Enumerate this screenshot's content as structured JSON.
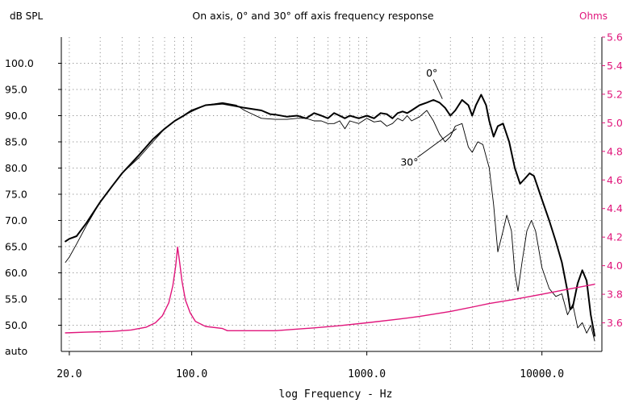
{
  "chart_data": {
    "type": "line",
    "title": "On axis, 0° and 30° off axis frequency response",
    "xlabel": "log Frequency - Hz",
    "ylabel_left": "dB SPL",
    "ylabel_right": "Ohms",
    "x_scale": "log",
    "xlim": [
      18,
      22000
    ],
    "ylim_left": [
      45,
      105
    ],
    "ylim_right": [
      3.4,
      5.6
    ],
    "grid": true,
    "x_ticks": [
      {
        "value": 20,
        "label": "20.0"
      },
      {
        "value": 100,
        "label": "100.0"
      },
      {
        "value": 1000,
        "label": "1000.0"
      },
      {
        "value": 10000,
        "label": "10000.0"
      }
    ],
    "y_ticks_left": [
      {
        "value": 100,
        "label": "100.0"
      },
      {
        "value": 95,
        "label": "95.0"
      },
      {
        "value": 90,
        "label": "90.0"
      },
      {
        "value": 85,
        "label": "85.0"
      },
      {
        "value": 80,
        "label": "80.0"
      },
      {
        "value": 75,
        "label": "75.0"
      },
      {
        "value": 70,
        "label": "70.0"
      },
      {
        "value": 65,
        "label": "65.0"
      },
      {
        "value": 60,
        "label": "60.0"
      },
      {
        "value": 55,
        "label": "55.0"
      },
      {
        "value": 50,
        "label": "50.0"
      }
    ],
    "y_bottom_label": "auto",
    "y_ticks_right": [
      {
        "value": 5.6,
        "label": "5.6"
      },
      {
        "value": 5.4,
        "label": "5.4"
      },
      {
        "value": 5.2,
        "label": "5.2"
      },
      {
        "value": 5.0,
        "label": "5.0"
      },
      {
        "value": 4.8,
        "label": "4.8"
      },
      {
        "value": 4.6,
        "label": "4.6"
      },
      {
        "value": 4.4,
        "label": "4.4"
      },
      {
        "value": 4.2,
        "label": "4.2"
      },
      {
        "value": 4.0,
        "label": "4.0"
      },
      {
        "value": 3.8,
        "label": "3.8"
      },
      {
        "value": 3.6,
        "label": "3.6"
      }
    ],
    "annotations": [
      {
        "text": "0°",
        "x": 2350,
        "y": 97.5
      },
      {
        "text": "30°",
        "x": 1750,
        "y": 80.5
      }
    ],
    "series": [
      {
        "name": "0°",
        "axis": "left",
        "color": "#000000",
        "width": 2,
        "points": [
          [
            19,
            66
          ],
          [
            20,
            66.5
          ],
          [
            22,
            67
          ],
          [
            25,
            69.5
          ],
          [
            30,
            73.5
          ],
          [
            35,
            76.5
          ],
          [
            40,
            79
          ],
          [
            50,
            82.5
          ],
          [
            60,
            85.5
          ],
          [
            70,
            87.5
          ],
          [
            80,
            89
          ],
          [
            90,
            90
          ],
          [
            100,
            91
          ],
          [
            120,
            92
          ],
          [
            150,
            92.3
          ],
          [
            180,
            91.8
          ],
          [
            200,
            91.5
          ],
          [
            250,
            91
          ],
          [
            280,
            90.3
          ],
          [
            300,
            90.2
          ],
          [
            350,
            89.8
          ],
          [
            400,
            90
          ],
          [
            450,
            89.5
          ],
          [
            500,
            90.5
          ],
          [
            550,
            90
          ],
          [
            600,
            89.5
          ],
          [
            650,
            90.5
          ],
          [
            700,
            90
          ],
          [
            750,
            89.5
          ],
          [
            800,
            90
          ],
          [
            900,
            89.5
          ],
          [
            1000,
            90
          ],
          [
            1100,
            89.5
          ],
          [
            1200,
            90.5
          ],
          [
            1300,
            90.3
          ],
          [
            1400,
            89.5
          ],
          [
            1500,
            90.5
          ],
          [
            1600,
            90.8
          ],
          [
            1700,
            90.5
          ],
          [
            1800,
            91
          ],
          [
            2000,
            92
          ],
          [
            2200,
            92.5
          ],
          [
            2400,
            93
          ],
          [
            2600,
            92.5
          ],
          [
            2800,
            91.5
          ],
          [
            3000,
            90
          ],
          [
            3200,
            91
          ],
          [
            3500,
            93
          ],
          [
            3800,
            92
          ],
          [
            4000,
            90
          ],
          [
            4200,
            92
          ],
          [
            4500,
            94
          ],
          [
            4800,
            92
          ],
          [
            5000,
            89
          ],
          [
            5300,
            86
          ],
          [
            5600,
            88
          ],
          [
            6000,
            88.5
          ],
          [
            6500,
            85
          ],
          [
            7000,
            80
          ],
          [
            7500,
            77
          ],
          [
            8000,
            78
          ],
          [
            8500,
            79
          ],
          [
            9000,
            78.5
          ],
          [
            10000,
            74
          ],
          [
            11000,
            70
          ],
          [
            12000,
            66
          ],
          [
            13000,
            62
          ],
          [
            14000,
            56.5
          ],
          [
            14500,
            53
          ],
          [
            15000,
            53.5
          ],
          [
            16000,
            58
          ],
          [
            17000,
            60.5
          ],
          [
            18000,
            58.5
          ],
          [
            19000,
            52
          ],
          [
            20000,
            48
          ]
        ]
      },
      {
        "name": "30°",
        "axis": "left",
        "color": "#000000",
        "width": 0.9,
        "points": [
          [
            19,
            62
          ],
          [
            20,
            63
          ],
          [
            22,
            65.5
          ],
          [
            25,
            69
          ],
          [
            30,
            73.5
          ],
          [
            35,
            76.5
          ],
          [
            40,
            79
          ],
          [
            50,
            82
          ],
          [
            60,
            85
          ],
          [
            70,
            87.5
          ],
          [
            80,
            89
          ],
          [
            90,
            90
          ],
          [
            100,
            90.8
          ],
          [
            120,
            92
          ],
          [
            150,
            92.5
          ],
          [
            180,
            92
          ],
          [
            200,
            91
          ],
          [
            250,
            89.5
          ],
          [
            300,
            89.3
          ],
          [
            350,
            89.3
          ],
          [
            400,
            89.5
          ],
          [
            450,
            89.5
          ],
          [
            500,
            89
          ],
          [
            550,
            89
          ],
          [
            600,
            88.5
          ],
          [
            650,
            88.5
          ],
          [
            700,
            89
          ],
          [
            750,
            87.5
          ],
          [
            800,
            89
          ],
          [
            900,
            88.5
          ],
          [
            1000,
            89.5
          ],
          [
            1100,
            88.8
          ],
          [
            1200,
            89
          ],
          [
            1300,
            88
          ],
          [
            1400,
            88.5
          ],
          [
            1500,
            89.5
          ],
          [
            1600,
            89
          ],
          [
            1700,
            90
          ],
          [
            1800,
            89
          ],
          [
            2000,
            89.8
          ],
          [
            2200,
            91
          ],
          [
            2400,
            89
          ],
          [
            2600,
            86.5
          ],
          [
            2800,
            85
          ],
          [
            3000,
            86
          ],
          [
            3200,
            88
          ],
          [
            3500,
            88.5
          ],
          [
            3800,
            84
          ],
          [
            4000,
            83
          ],
          [
            4300,
            85
          ],
          [
            4600,
            84.5
          ],
          [
            5000,
            80
          ],
          [
            5300,
            73
          ],
          [
            5600,
            64
          ],
          [
            6000,
            68
          ],
          [
            6300,
            71
          ],
          [
            6700,
            68
          ],
          [
            7000,
            60
          ],
          [
            7300,
            56.5
          ],
          [
            7700,
            62
          ],
          [
            8200,
            68
          ],
          [
            8700,
            70
          ],
          [
            9200,
            68
          ],
          [
            10000,
            61
          ],
          [
            11000,
            57
          ],
          [
            12000,
            55.5
          ],
          [
            13000,
            56
          ],
          [
            14000,
            52
          ],
          [
            15000,
            54
          ],
          [
            16000,
            49.5
          ],
          [
            17000,
            50.5
          ],
          [
            18000,
            48.5
          ],
          [
            19000,
            50
          ],
          [
            20000,
            47
          ]
        ]
      },
      {
        "name": "Ohms",
        "axis": "right",
        "color": "#e0157b",
        "width": 1.4,
        "points": [
          [
            19,
            3.53
          ],
          [
            25,
            3.535
          ],
          [
            35,
            3.54
          ],
          [
            45,
            3.55
          ],
          [
            55,
            3.57
          ],
          [
            62,
            3.6
          ],
          [
            68,
            3.65
          ],
          [
            74,
            3.74
          ],
          [
            78,
            3.86
          ],
          [
            81,
            4.0
          ],
          [
            83,
            4.13
          ],
          [
            85,
            4.04
          ],
          [
            88,
            3.89
          ],
          [
            92,
            3.76
          ],
          [
            98,
            3.67
          ],
          [
            105,
            3.61
          ],
          [
            120,
            3.575
          ],
          [
            150,
            3.56
          ],
          [
            160,
            3.545
          ],
          [
            200,
            3.545
          ],
          [
            300,
            3.545
          ],
          [
            500,
            3.565
          ],
          [
            700,
            3.58
          ],
          [
            1000,
            3.6
          ],
          [
            1500,
            3.625
          ],
          [
            2000,
            3.645
          ],
          [
            3000,
            3.68
          ],
          [
            4000,
            3.71
          ],
          [
            5000,
            3.735
          ],
          [
            7000,
            3.765
          ],
          [
            10000,
            3.8
          ],
          [
            14000,
            3.835
          ],
          [
            20000,
            3.87
          ]
        ]
      }
    ]
  }
}
